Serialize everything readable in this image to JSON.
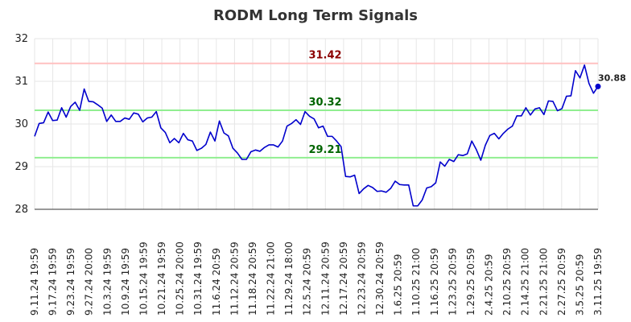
{
  "chart_data": {
    "type": "line",
    "title": "RODM Long Term Signals",
    "xlabel": "",
    "ylabel": "",
    "ylim": [
      28,
      32
    ],
    "yticks": [
      "28",
      "29",
      "30",
      "31",
      "32"
    ],
    "grid": true,
    "xtick_labels": [
      "9.11.24 19:59",
      "9.17.24 19:59",
      "9.23.24 19:59",
      "9.27.24 20:00",
      "10.3.24 19:59",
      "10.9.24 19:59",
      "10.15.24 19:59",
      "10.21.24 19:59",
      "10.25.24 20:00",
      "10.31.24 19:59",
      "11.6.24 20:59",
      "11.12.24 20:59",
      "11.18.24 20:59",
      "11.22.24 21:00",
      "11.29.24 18:00",
      "12.5.24 20:59",
      "12.11.24 20:59",
      "12.17.24 20:59",
      "12.23.24 20:59",
      "12.30.24 20:59",
      "1.6.25 20:59",
      "1.10.25 21:00",
      "1.16.25 20:59",
      "1.23.25 20:59",
      "1.29.25 20:59",
      "2.4.25 20:59",
      "2.10.25 20:59",
      "2.14.25 21:00",
      "2.21.25 21:00",
      "2.27.25 20:59",
      "3.5.25 20:59",
      "3.11.25 19:59"
    ],
    "series": [
      {
        "name": "",
        "color": "#0000cc",
        "values": [
          29.71,
          30.01,
          30.03,
          30.28,
          30.08,
          30.09,
          30.38,
          30.16,
          30.41,
          30.51,
          30.32,
          30.82,
          30.53,
          30.52,
          30.45,
          30.37,
          30.06,
          30.21,
          30.06,
          30.06,
          30.14,
          30.11,
          30.26,
          30.23,
          30.05,
          30.14,
          30.16,
          30.29,
          29.91,
          29.8,
          29.56,
          29.66,
          29.56,
          29.78,
          29.63,
          29.6,
          29.38,
          29.43,
          29.52,
          29.81,
          29.6,
          30.07,
          29.79,
          29.72,
          29.43,
          29.32,
          29.17,
          29.17,
          29.35,
          29.39,
          29.36,
          29.45,
          29.51,
          29.51,
          29.46,
          29.6,
          29.95,
          30.01,
          30.1,
          29.99,
          30.29,
          30.18,
          30.12,
          29.91,
          29.95,
          29.71,
          29.71,
          29.6,
          29.47,
          28.77,
          28.76,
          28.8,
          28.37,
          28.48,
          28.56,
          28.51,
          28.42,
          28.43,
          28.4,
          28.49,
          28.66,
          28.58,
          28.57,
          28.57,
          28.08,
          28.08,
          28.22,
          28.5,
          28.53,
          28.62,
          29.11,
          29.01,
          29.17,
          29.12,
          29.28,
          29.26,
          29.3,
          29.6,
          29.4,
          29.15,
          29.5,
          29.73,
          29.78,
          29.65,
          29.78,
          29.88,
          29.95,
          30.19,
          30.19,
          30.38,
          30.21,
          30.35,
          30.38,
          30.22,
          30.54,
          30.53,
          30.31,
          30.36,
          30.65,
          30.66,
          31.25,
          31.08,
          31.38,
          30.95,
          30.72,
          30.88
        ]
      }
    ],
    "levels": [
      {
        "label": "31.42",
        "value": 31.42,
        "line_color": "#ffc0c0",
        "text_color": "#8b0000"
      },
      {
        "label": "30.32",
        "value": 30.32,
        "line_color": "#90ee90",
        "text_color": "#006400"
      },
      {
        "label": "29.21",
        "value": 29.21,
        "line_color": "#90ee90",
        "text_color": "#006400"
      }
    ],
    "last_value_label": "30.88",
    "colors": {
      "line": "#0000cc",
      "grid": "#e6e6e6",
      "resistance": "#ffc0c0",
      "support": "#90ee90"
    }
  }
}
